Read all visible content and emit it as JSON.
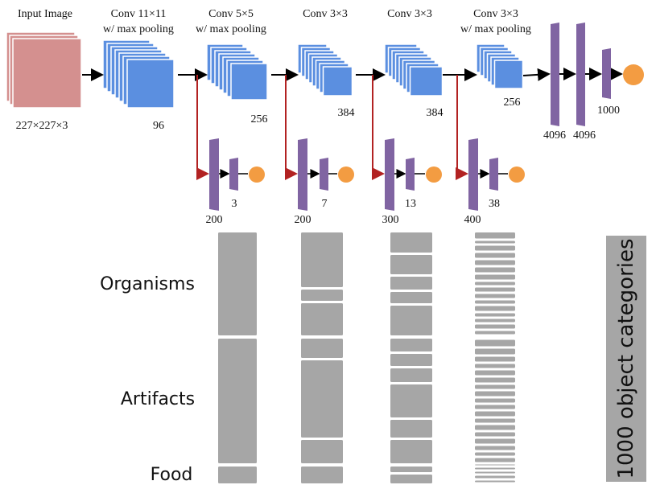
{
  "colors": {
    "input": "#d4908f",
    "conv": "#5b8fe0",
    "fc": "#8064a2",
    "output": "#f39c42",
    "branch_arrow": "#b22222",
    "main_arrow": "#000000",
    "bar": "#a6a6a6"
  },
  "network": {
    "input": {
      "title": "Input Image",
      "size": "227×227×3"
    },
    "conv_layers": [
      {
        "title1": "Conv 11×11",
        "title2": "w/ max pooling",
        "channels": "96"
      },
      {
        "title1": "Conv 5×5",
        "title2": "w/ max pooling",
        "channels": "256"
      },
      {
        "title1": "Conv 3×3",
        "title2": "",
        "channels": "384"
      },
      {
        "title1": "Conv 3×3",
        "title2": "",
        "channels": "384"
      },
      {
        "title1": "Conv 3×3",
        "title2": "w/ max pooling",
        "channels": "256"
      }
    ],
    "fc_layers": [
      "4096",
      "4096",
      "1000"
    ],
    "branches": [
      {
        "hidden": "200",
        "output": "3"
      },
      {
        "hidden": "200",
        "output": "7"
      },
      {
        "hidden": "300",
        "output": "13"
      },
      {
        "hidden": "400",
        "output": "38"
      }
    ]
  },
  "categories": {
    "groups": [
      "Organisms",
      "Artifacts",
      "Food"
    ],
    "vertical_label": "1000 object categories",
    "num_categories": 1000
  }
}
